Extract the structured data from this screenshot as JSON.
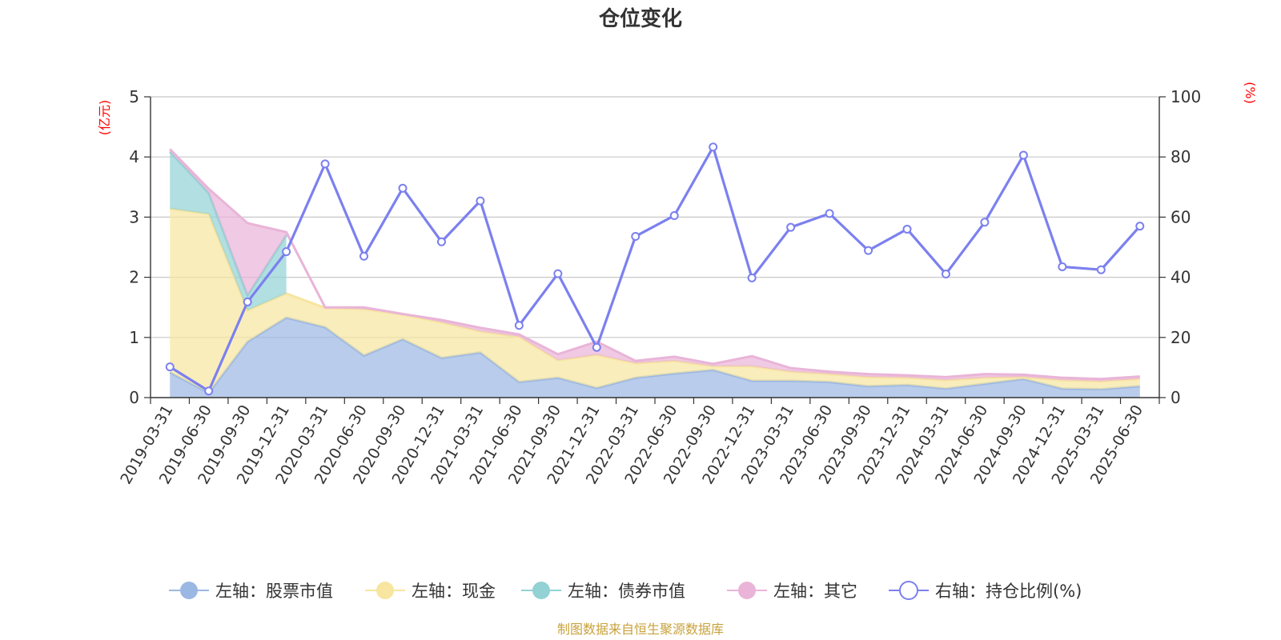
{
  "chart_data": {
    "type": "area",
    "title": "仓位变化",
    "left_axis_unit": "(亿元)",
    "right_axis_unit": "(%)",
    "source": "制图数据来自恒生聚源数据库",
    "x": [
      "2019-03-31",
      "2019-06-30",
      "2019-09-30",
      "2019-12-31",
      "2020-03-31",
      "2020-06-30",
      "2020-09-30",
      "2020-12-31",
      "2021-03-31",
      "2021-06-30",
      "2021-09-30",
      "2021-12-31",
      "2022-03-31",
      "2022-06-30",
      "2022-09-30",
      "2022-12-31",
      "2023-03-31",
      "2023-06-30",
      "2023-09-30",
      "2023-12-31",
      "2024-03-31",
      "2024-06-30",
      "2024-09-30",
      "2024-12-31",
      "2025-03-31",
      "2025-06-30"
    ],
    "y_left_ticks": [
      "0",
      "1",
      "2",
      "3",
      "4",
      "5"
    ],
    "y_right_ticks": [
      "0",
      "20",
      "40",
      "60",
      "80",
      "100"
    ],
    "y_left_range": [
      0,
      5
    ],
    "y_right_range": [
      0,
      100
    ],
    "grid": true,
    "legend_position": "bottom",
    "series": [
      {
        "name": "左轴：股票市值",
        "axis": "left",
        "kind": "area",
        "color": "#9bb7e3",
        "values": [
          0.42,
          0.08,
          0.93,
          1.33,
          1.17,
          0.7,
          0.97,
          0.66,
          0.75,
          0.26,
          0.33,
          0.16,
          0.33,
          0.4,
          0.46,
          0.28,
          0.28,
          0.26,
          0.19,
          0.21,
          0.15,
          0.23,
          0.31,
          0.15,
          0.14,
          0.19
        ]
      },
      {
        "name": "左轴：现金",
        "axis": "left",
        "kind": "area",
        "color": "#f7e5a0",
        "values": [
          2.72,
          2.97,
          0.52,
          0.4,
          0.32,
          0.77,
          0.41,
          0.59,
          0.35,
          0.75,
          0.29,
          0.55,
          0.24,
          0.21,
          0.06,
          0.24,
          0.15,
          0.13,
          0.15,
          0.12,
          0.14,
          0.1,
          0.03,
          0.14,
          0.13,
          0.12
        ]
      },
      {
        "name": "左轴：债券市值",
        "axis": "left",
        "kind": "area",
        "color": "#92d1d4",
        "values": [
          0.95,
          0.35,
          0.25,
          0.97,
          0,
          0,
          0,
          0,
          0,
          0,
          0,
          0,
          0,
          0,
          0,
          0,
          0,
          0,
          0,
          0,
          0,
          0,
          0,
          0,
          0,
          0
        ]
      },
      {
        "name": "左轴：其它",
        "axis": "left",
        "kind": "area",
        "color": "#e9b4d8",
        "values": [
          0.04,
          0.07,
          1.2,
          0.05,
          0.01,
          0.03,
          0.01,
          0.04,
          0.06,
          0.04,
          0.1,
          0.22,
          0.04,
          0.07,
          0.04,
          0.17,
          0.06,
          0.04,
          0.05,
          0.04,
          0.05,
          0.06,
          0.04,
          0.04,
          0.04,
          0.04
        ]
      },
      {
        "name": "右轴：持仓比例(%)",
        "axis": "right",
        "kind": "line",
        "color": "#7b80ef",
        "values": [
          10.2,
          2.2,
          31.8,
          48.5,
          77.7,
          47.0,
          69.6,
          51.8,
          65.4,
          24.0,
          41.2,
          16.7,
          53.6,
          60.5,
          83.3,
          39.8,
          56.6,
          61.2,
          48.9,
          56.0,
          41.1,
          58.3,
          80.6,
          43.5,
          42.5,
          57.0
        ]
      }
    ]
  }
}
